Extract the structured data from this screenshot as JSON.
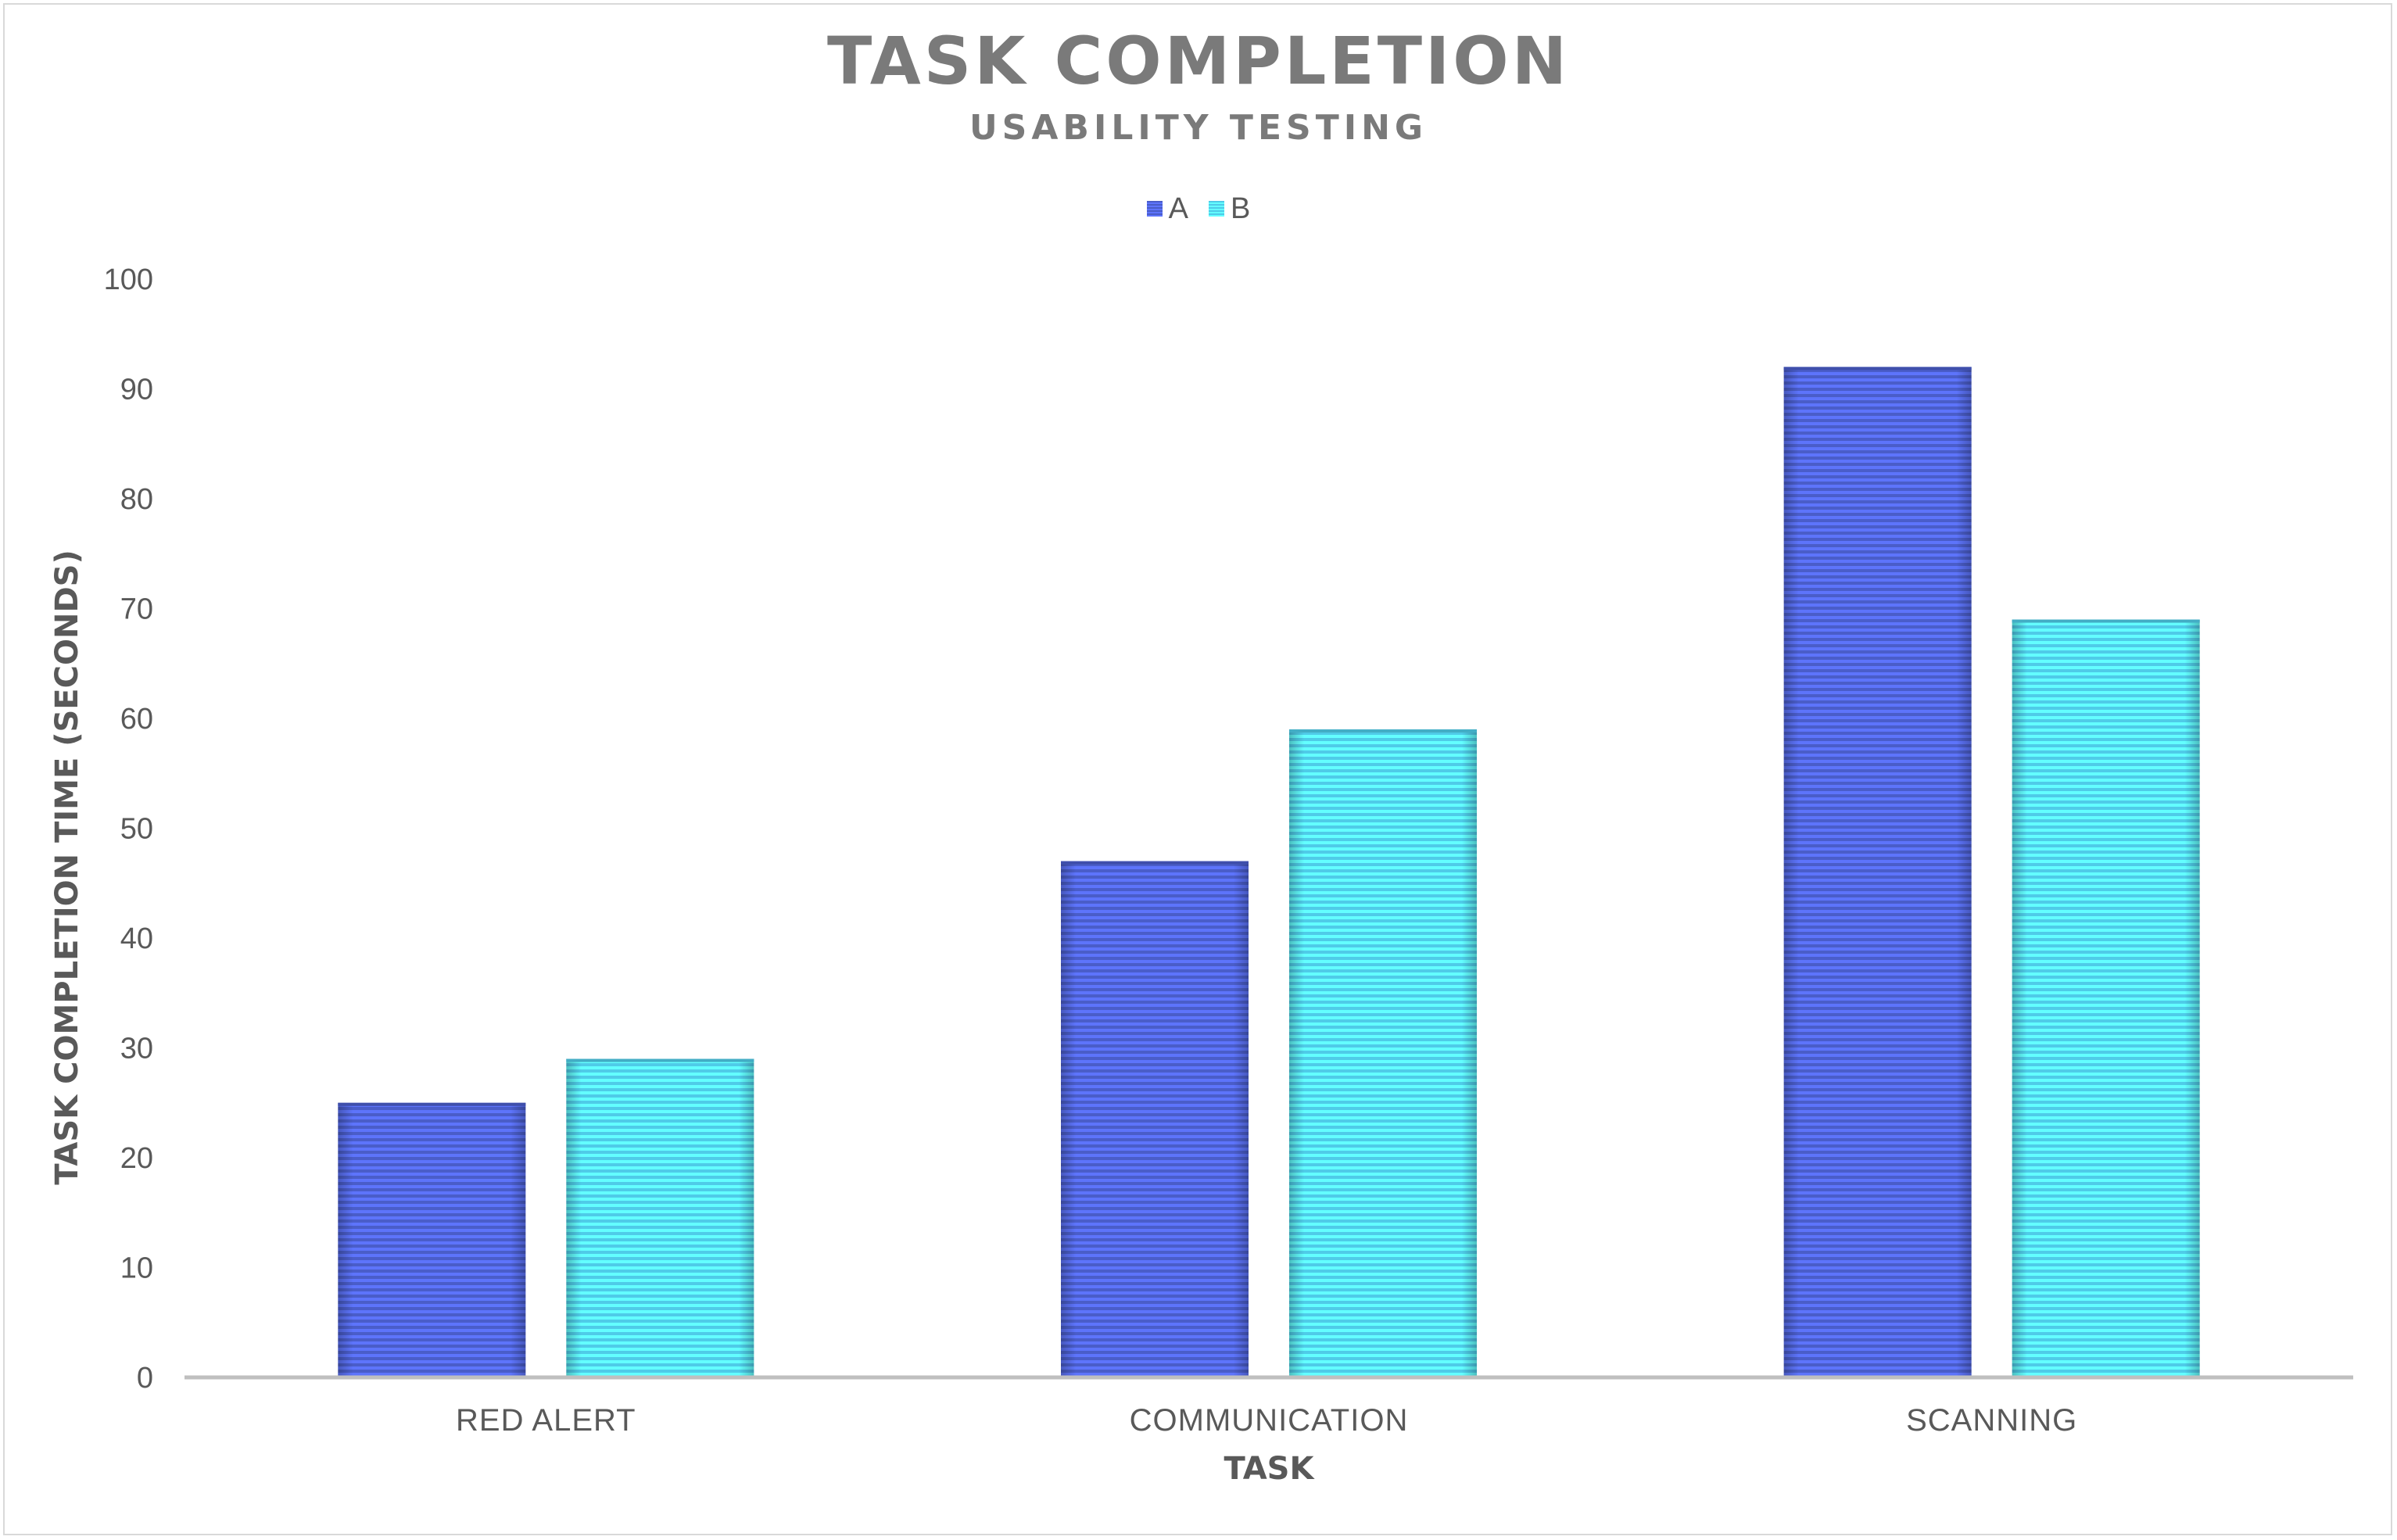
{
  "chart_data": {
    "type": "bar",
    "title": "TASK COMPLETION",
    "subtitle": "USABILITY TESTING",
    "xlabel": "TASK",
    "ylabel": "TASK COMPLETION TIME (SECONDS)",
    "categories": [
      "RED ALERT",
      "COMMUNICATION",
      "SCANNING"
    ],
    "series": [
      {
        "name": "A",
        "values": [
          25,
          47,
          92
        ],
        "color": "#4a5dc9"
      },
      {
        "name": "B",
        "values": [
          29,
          59,
          69
        ],
        "color": "#4fcbe8"
      }
    ],
    "ylim": [
      0,
      100
    ],
    "yticks": [
      "0",
      "10",
      "20",
      "30",
      "40",
      "50",
      "60",
      "70",
      "80",
      "90",
      "100"
    ],
    "grid": false,
    "legend_position": "top",
    "bar_pattern": "horizontal-stripes"
  }
}
